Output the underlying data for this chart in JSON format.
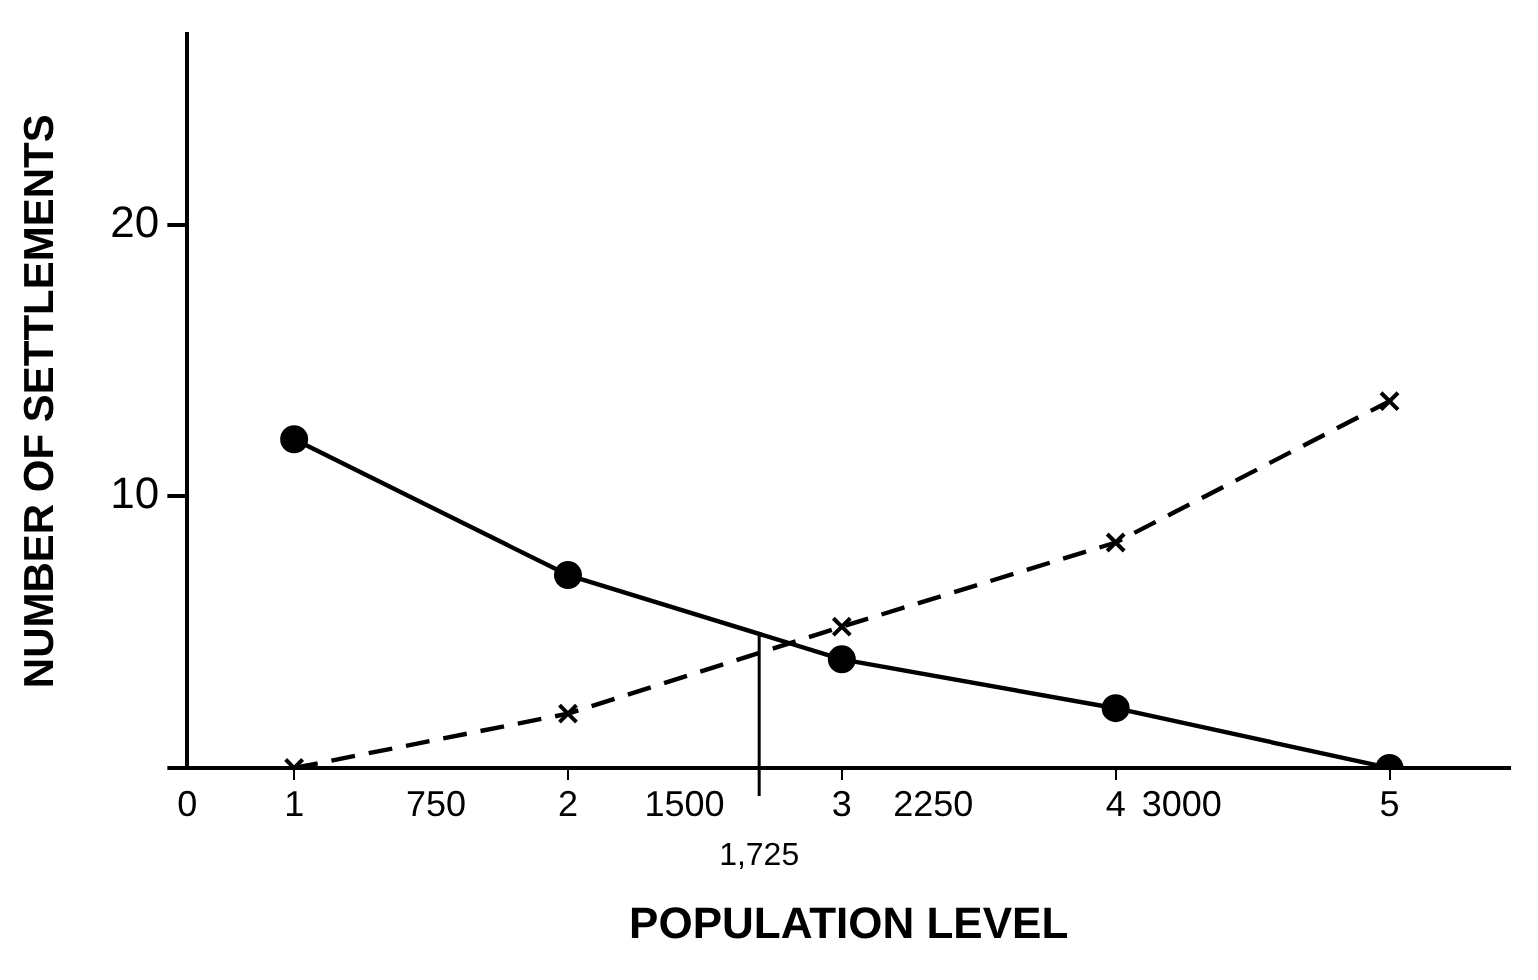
{
  "chart_data": {
    "type": "line",
    "xlabel": "POPULATION LEVEL",
    "ylabel": "NUMBER OF SETTLEMENTS",
    "xlim": [
      0.61,
      5.44
    ],
    "ylim": [
      0,
      27
    ],
    "xticks": [
      1,
      2,
      3,
      4,
      5
    ],
    "x2lim": [
      0,
      3990
    ],
    "x2ticks": [
      0,
      750,
      1500,
      2250,
      3000
    ],
    "yticks": [
      {
        "value": 0,
        "label": null
      },
      10,
      20
    ],
    "series": [
      {
        "color": "#000000",
        "marker": "circle",
        "line_style": "solid",
        "x": [
          1,
          2,
          3,
          4,
          5
        ],
        "values": [
          12.1,
          7.1,
          4.0,
          2.2,
          0
        ]
      },
      {
        "color": "#000000",
        "marker": "cross",
        "line_style": "dashed",
        "x": [
          1,
          2,
          3,
          4,
          5
        ],
        "values": [
          0,
          2.0,
          5.2,
          8.3,
          13.5
        ]
      }
    ],
    "ref_lines": [
      {
        "axis": "x2",
        "value": 1725,
        "label": "1,725"
      }
    ],
    "grid": false,
    "legend": false
  }
}
